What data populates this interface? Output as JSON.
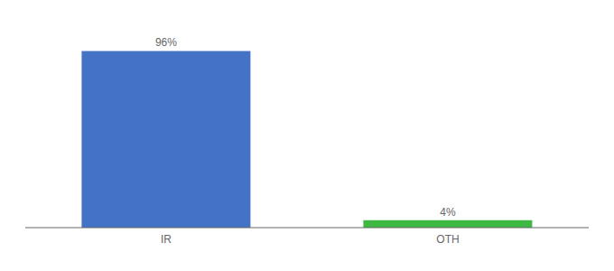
{
  "chart_data": {
    "type": "bar",
    "categories": [
      "IR",
      "OTH"
    ],
    "values": [
      96,
      4
    ],
    "value_labels": [
      "96%",
      "4%"
    ],
    "colors": [
      "#4472c4",
      "#3cb843"
    ],
    "ylim": [
      0,
      108
    ],
    "data_labels": true,
    "tick_labels": "x",
    "grid": false
  }
}
